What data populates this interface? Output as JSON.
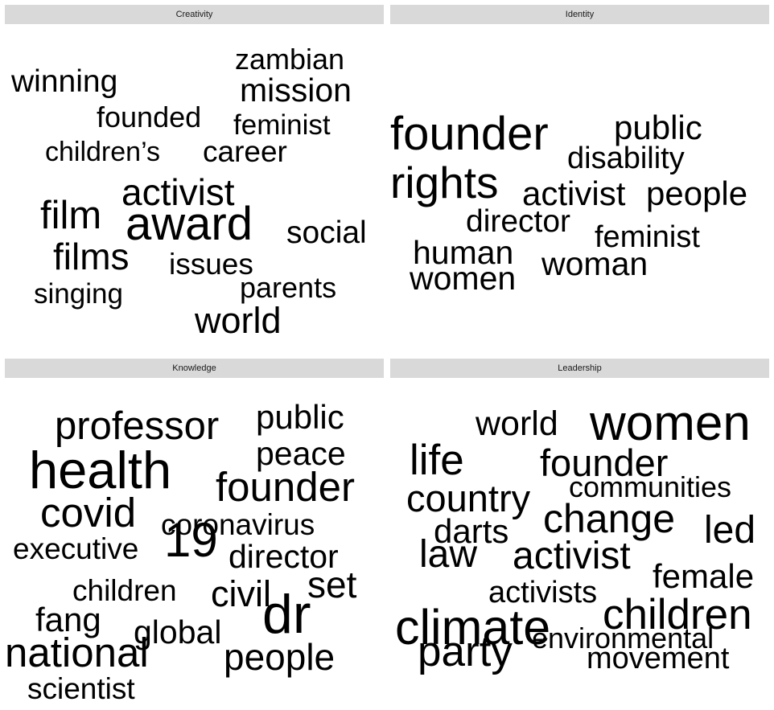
{
  "chart_data": [
    {
      "type": "wordcloud",
      "facet": "Creativity",
      "words": [
        {
          "text": "award",
          "size": 1.0
        },
        {
          "text": "activist",
          "size": 0.8
        },
        {
          "text": "film",
          "size": 0.85
        },
        {
          "text": "films",
          "size": 0.8
        },
        {
          "text": "world",
          "size": 0.78
        },
        {
          "text": "mission",
          "size": 0.7
        },
        {
          "text": "winning",
          "size": 0.68
        },
        {
          "text": "zambian",
          "size": 0.62
        },
        {
          "text": "social",
          "size": 0.68
        },
        {
          "text": "career",
          "size": 0.64
        },
        {
          "text": "feminist",
          "size": 0.6
        },
        {
          "text": "founded",
          "size": 0.62
        },
        {
          "text": "children’s",
          "size": 0.58
        },
        {
          "text": "issues",
          "size": 0.64
        },
        {
          "text": "parents",
          "size": 0.62
        },
        {
          "text": "singing",
          "size": 0.6
        }
      ]
    },
    {
      "type": "wordcloud",
      "facet": "Identity",
      "words": [
        {
          "text": "founder",
          "size": 1.0
        },
        {
          "text": "rights",
          "size": 0.95
        },
        {
          "text": "public",
          "size": 0.72
        },
        {
          "text": "disability",
          "size": 0.66
        },
        {
          "text": "activist",
          "size": 0.72
        },
        {
          "text": "people",
          "size": 0.72
        },
        {
          "text": "director",
          "size": 0.68
        },
        {
          "text": "feminist",
          "size": 0.66
        },
        {
          "text": "human",
          "size": 0.7
        },
        {
          "text": "woman",
          "size": 0.7
        },
        {
          "text": "women",
          "size": 0.7
        }
      ]
    },
    {
      "type": "wordcloud",
      "facet": "Knowledge",
      "words": [
        {
          "text": "dr",
          "size": 1.0
        },
        {
          "text": "health",
          "size": 0.95
        },
        {
          "text": "19",
          "size": 0.88
        },
        {
          "text": "professor",
          "size": 0.72
        },
        {
          "text": "founder",
          "size": 0.75
        },
        {
          "text": "covid",
          "size": 0.75
        },
        {
          "text": "national",
          "size": 0.75
        },
        {
          "text": "public",
          "size": 0.62
        },
        {
          "text": "peace",
          "size": 0.6
        },
        {
          "text": "coronavirus",
          "size": 0.55
        },
        {
          "text": "executive",
          "size": 0.55
        },
        {
          "text": "director",
          "size": 0.6
        },
        {
          "text": "children",
          "size": 0.55
        },
        {
          "text": "civil",
          "size": 0.66
        },
        {
          "text": "set",
          "size": 0.68
        },
        {
          "text": "fang",
          "size": 0.62
        },
        {
          "text": "global",
          "size": 0.6
        },
        {
          "text": "people",
          "size": 0.68
        },
        {
          "text": "scientist",
          "size": 0.55
        }
      ]
    },
    {
      "type": "wordcloud",
      "facet": "Leadership",
      "words": [
        {
          "text": "women",
          "size": 1.0
        },
        {
          "text": "climate",
          "size": 0.98
        },
        {
          "text": "life",
          "size": 0.85
        },
        {
          "text": "party",
          "size": 0.85
        },
        {
          "text": "children",
          "size": 0.85
        },
        {
          "text": "change",
          "size": 0.8
        },
        {
          "text": "country",
          "size": 0.75
        },
        {
          "text": "activist",
          "size": 0.78
        },
        {
          "text": "law",
          "size": 0.78
        },
        {
          "text": "led",
          "size": 0.78
        },
        {
          "text": "founder",
          "size": 0.75
        },
        {
          "text": "world",
          "size": 0.7
        },
        {
          "text": "darts",
          "size": 0.68
        },
        {
          "text": "female",
          "size": 0.68
        },
        {
          "text": "communities",
          "size": 0.58
        },
        {
          "text": "activists",
          "size": 0.62
        },
        {
          "text": "environmental",
          "size": 0.58
        },
        {
          "text": "movement",
          "size": 0.62
        }
      ]
    }
  ]
}
